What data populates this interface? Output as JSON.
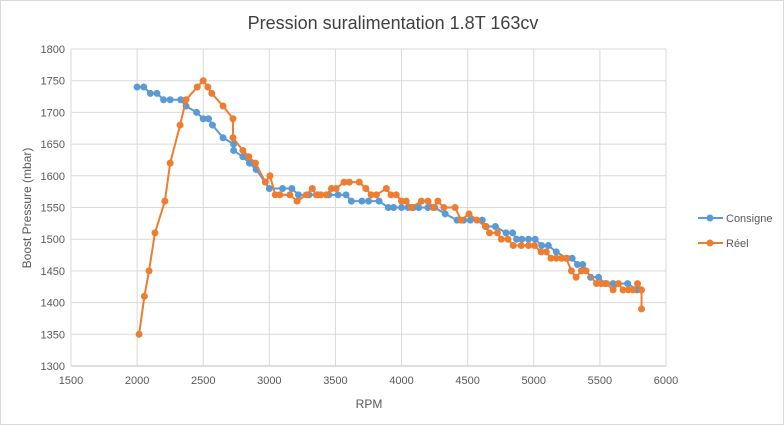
{
  "chart_data": {
    "type": "line",
    "title": "Pression suralimentation 1.8T 163cv",
    "xlabel": "RPM",
    "ylabel": "Boost Pressure (mbar)",
    "xlim": [
      1500,
      6000
    ],
    "ylim": [
      1300,
      1800
    ],
    "x_ticks": [
      1500,
      2000,
      2500,
      3000,
      3500,
      4000,
      4500,
      5000,
      5500,
      6000
    ],
    "y_ticks": [
      1300,
      1350,
      1400,
      1450,
      1500,
      1550,
      1600,
      1650,
      1700,
      1750,
      1800
    ],
    "grid": true,
    "legend_position": "right",
    "series": [
      {
        "name": "Consigne",
        "color": "#5b9bd5",
        "x": [
          2000,
          2050,
          2100,
          2150,
          2200,
          2250,
          2330,
          2370,
          2450,
          2500,
          2540,
          2570,
          2650,
          2730,
          2730,
          2800,
          2850,
          2900,
          3000,
          3100,
          3170,
          3220,
          3300,
          3370,
          3450,
          3520,
          3580,
          3620,
          3700,
          3750,
          3830,
          3900,
          3940,
          4000,
          4050,
          4090,
          4130,
          4200,
          4250,
          4330,
          4420,
          4470,
          4520,
          4610,
          4640,
          4710,
          4790,
          4840,
          4870,
          4910,
          4960,
          5010,
          5060,
          5110,
          5170,
          5250,
          5290,
          5330,
          5370,
          5430,
          5490,
          5540,
          5600,
          5710,
          5780,
          5810
        ],
        "y": [
          1740,
          1740,
          1730,
          1730,
          1720,
          1720,
          1720,
          1710,
          1700,
          1690,
          1690,
          1680,
          1660,
          1650,
          1640,
          1630,
          1620,
          1610,
          1580,
          1580,
          1580,
          1570,
          1570,
          1570,
          1570,
          1570,
          1570,
          1560,
          1560,
          1560,
          1560,
          1550,
          1550,
          1550,
          1550,
          1550,
          1550,
          1550,
          1550,
          1540,
          1530,
          1530,
          1530,
          1530,
          1520,
          1520,
          1510,
          1510,
          1500,
          1500,
          1500,
          1500,
          1490,
          1490,
          1480,
          1470,
          1470,
          1460,
          1460,
          1440,
          1440,
          1430,
          1430,
          1430,
          1420,
          1420
        ]
      },
      {
        "name": "Réel",
        "color": "#ed7d31",
        "x": [
          2015,
          2055,
          2090,
          2135,
          2210,
          2250,
          2325,
          2370,
          2455,
          2500,
          2535,
          2565,
          2650,
          2725,
          2725,
          2800,
          2845,
          2895,
          2970,
          3005,
          3045,
          3080,
          3155,
          3210,
          3280,
          3325,
          3355,
          3390,
          3430,
          3470,
          3505,
          3565,
          3605,
          3680,
          3730,
          3770,
          3810,
          3885,
          3920,
          3960,
          4000,
          4035,
          4075,
          4150,
          4200,
          4240,
          4275,
          4320,
          4405,
          4450,
          4510,
          4570,
          4635,
          4665,
          4725,
          4755,
          4805,
          4845,
          4905,
          4960,
          5005,
          5055,
          5095,
          5130,
          5170,
          5210,
          5245,
          5285,
          5320,
          5360,
          5395,
          5475,
          5510,
          5550,
          5600,
          5640,
          5675,
          5715,
          5750,
          5785,
          5815,
          5815
        ],
        "y": [
          1350,
          1410,
          1450,
          1510,
          1560,
          1620,
          1680,
          1720,
          1740,
          1750,
          1740,
          1730,
          1710,
          1690,
          1660,
          1640,
          1630,
          1620,
          1590,
          1600,
          1570,
          1570,
          1570,
          1560,
          1570,
          1580,
          1570,
          1570,
          1570,
          1580,
          1580,
          1590,
          1590,
          1590,
          1580,
          1570,
          1570,
          1580,
          1570,
          1570,
          1560,
          1560,
          1550,
          1560,
          1560,
          1550,
          1560,
          1550,
          1550,
          1530,
          1540,
          1530,
          1520,
          1510,
          1510,
          1500,
          1500,
          1490,
          1490,
          1490,
          1490,
          1480,
          1480,
          1470,
          1470,
          1470,
          1470,
          1450,
          1440,
          1450,
          1450,
          1430,
          1430,
          1430,
          1420,
          1430,
          1420,
          1420,
          1420,
          1430,
          1420,
          1390
        ]
      }
    ]
  }
}
